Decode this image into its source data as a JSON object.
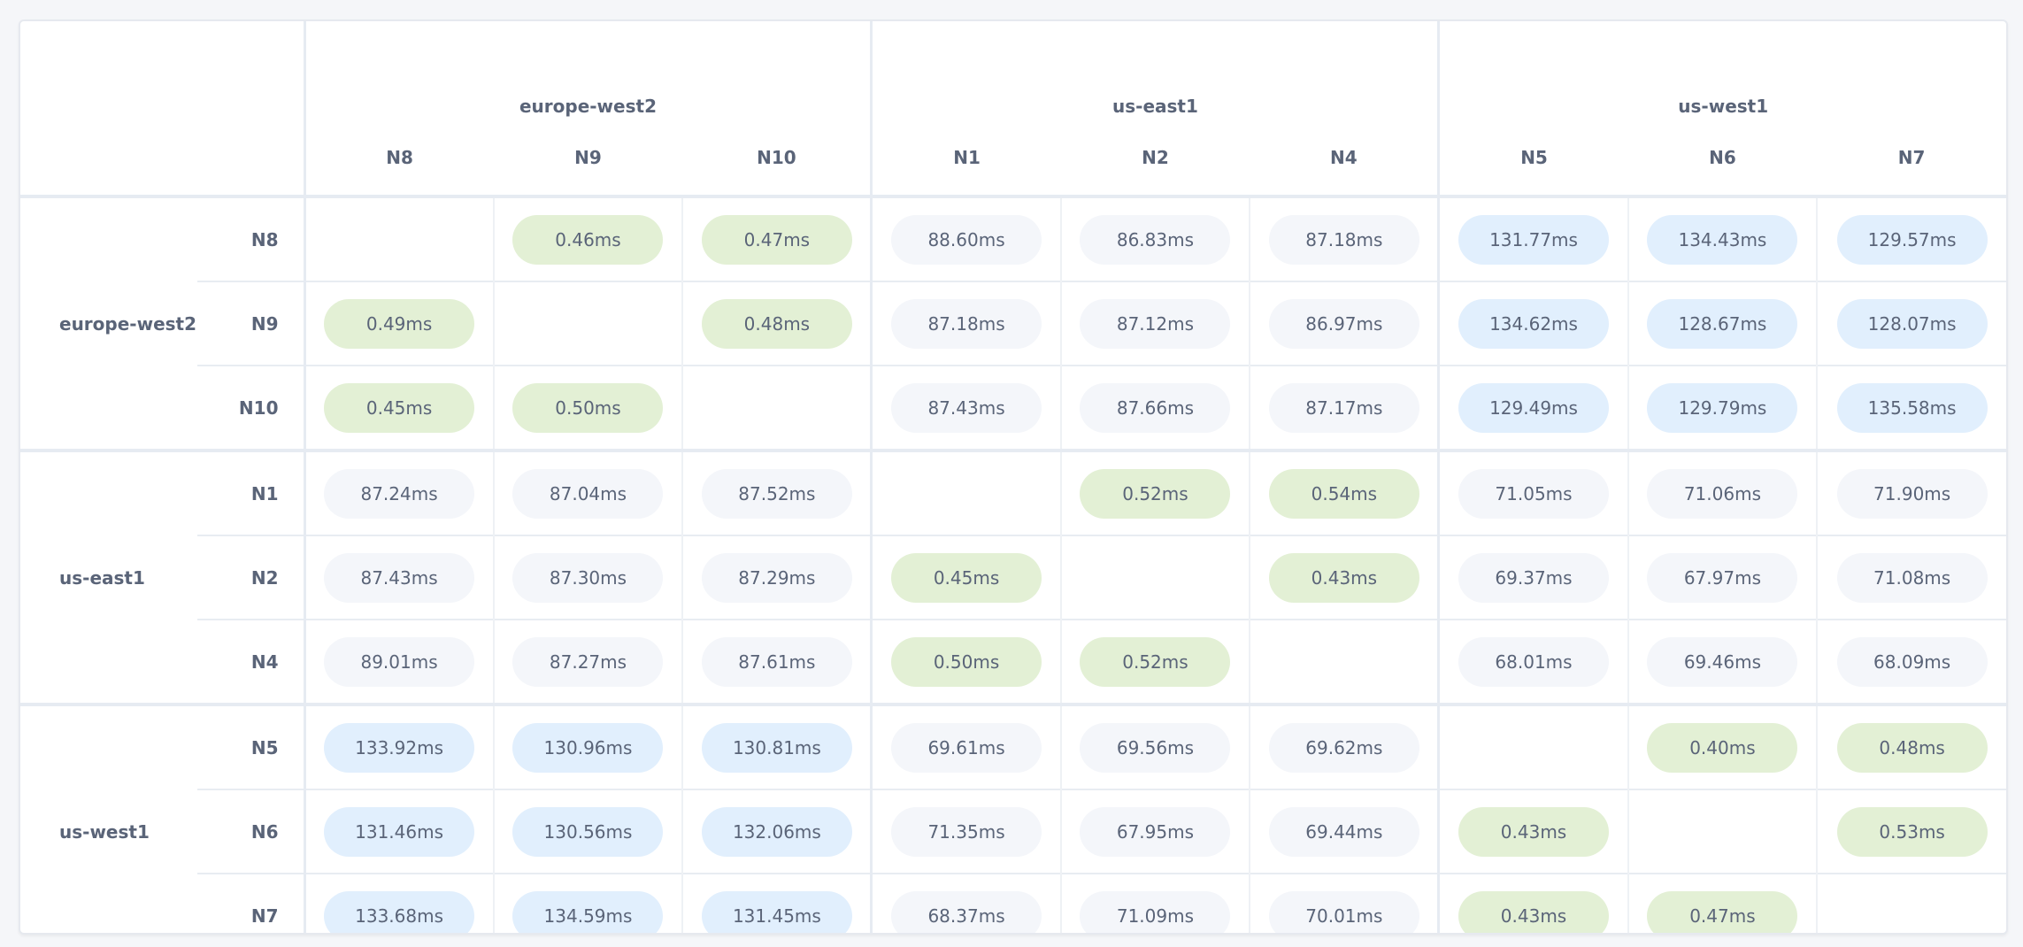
{
  "colors": {
    "same_region": "#e3f0d5",
    "far_region": "#e1effd",
    "near_region": "#f4f6fa",
    "text": "#5a6478"
  },
  "regions": [
    {
      "name": "europe-west2",
      "nodes": [
        "N8",
        "N9",
        "N10"
      ]
    },
    {
      "name": "us-east1",
      "nodes": [
        "N1",
        "N2",
        "N4"
      ]
    },
    {
      "name": "us-west1",
      "nodes": [
        "N5",
        "N6",
        "N7"
      ]
    }
  ],
  "rows": [
    {
      "region": "europe-west2",
      "node": "N8",
      "cells": [
        [
          "",
          ""
        ],
        [
          "0.46ms",
          "green"
        ],
        [
          "0.47ms",
          "green"
        ],
        [
          "88.60ms",
          "gray"
        ],
        [
          "86.83ms",
          "gray"
        ],
        [
          "87.18ms",
          "gray"
        ],
        [
          "131.77ms",
          "blue"
        ],
        [
          "134.43ms",
          "blue"
        ],
        [
          "129.57ms",
          "blue"
        ]
      ]
    },
    {
      "region": "",
      "node": "N9",
      "cells": [
        [
          "0.49ms",
          "green"
        ],
        [
          "",
          ""
        ],
        [
          "0.48ms",
          "green"
        ],
        [
          "87.18ms",
          "gray"
        ],
        [
          "87.12ms",
          "gray"
        ],
        [
          "86.97ms",
          "gray"
        ],
        [
          "134.62ms",
          "blue"
        ],
        [
          "128.67ms",
          "blue"
        ],
        [
          "128.07ms",
          "blue"
        ]
      ]
    },
    {
      "region": "",
      "node": "N10",
      "cells": [
        [
          "0.45ms",
          "green"
        ],
        [
          "0.50ms",
          "green"
        ],
        [
          "",
          ""
        ],
        [
          "87.43ms",
          "gray"
        ],
        [
          "87.66ms",
          "gray"
        ],
        [
          "87.17ms",
          "gray"
        ],
        [
          "129.49ms",
          "blue"
        ],
        [
          "129.79ms",
          "blue"
        ],
        [
          "135.58ms",
          "blue"
        ]
      ]
    },
    {
      "region": "us-east1",
      "node": "N1",
      "cells": [
        [
          "87.24ms",
          "gray"
        ],
        [
          "87.04ms",
          "gray"
        ],
        [
          "87.52ms",
          "gray"
        ],
        [
          "",
          ""
        ],
        [
          "0.52ms",
          "green"
        ],
        [
          "0.54ms",
          "green"
        ],
        [
          "71.05ms",
          "gray"
        ],
        [
          "71.06ms",
          "gray"
        ],
        [
          "71.90ms",
          "gray"
        ]
      ]
    },
    {
      "region": "",
      "node": "N2",
      "cells": [
        [
          "87.43ms",
          "gray"
        ],
        [
          "87.30ms",
          "gray"
        ],
        [
          "87.29ms",
          "gray"
        ],
        [
          "0.45ms",
          "green"
        ],
        [
          "",
          ""
        ],
        [
          "0.43ms",
          "green"
        ],
        [
          "69.37ms",
          "gray"
        ],
        [
          "67.97ms",
          "gray"
        ],
        [
          "71.08ms",
          "gray"
        ]
      ]
    },
    {
      "region": "",
      "node": "N4",
      "cells": [
        [
          "89.01ms",
          "gray"
        ],
        [
          "87.27ms",
          "gray"
        ],
        [
          "87.61ms",
          "gray"
        ],
        [
          "0.50ms",
          "green"
        ],
        [
          "0.52ms",
          "green"
        ],
        [
          "",
          ""
        ],
        [
          "68.01ms",
          "gray"
        ],
        [
          "69.46ms",
          "gray"
        ],
        [
          "68.09ms",
          "gray"
        ]
      ]
    },
    {
      "region": "us-west1",
      "node": "N5",
      "cells": [
        [
          "133.92ms",
          "blue"
        ],
        [
          "130.96ms",
          "blue"
        ],
        [
          "130.81ms",
          "blue"
        ],
        [
          "69.61ms",
          "gray"
        ],
        [
          "69.56ms",
          "gray"
        ],
        [
          "69.62ms",
          "gray"
        ],
        [
          "",
          ""
        ],
        [
          "0.40ms",
          "green"
        ],
        [
          "0.48ms",
          "green"
        ]
      ]
    },
    {
      "region": "",
      "node": "N6",
      "cells": [
        [
          "131.46ms",
          "blue"
        ],
        [
          "130.56ms",
          "blue"
        ],
        [
          "132.06ms",
          "blue"
        ],
        [
          "71.35ms",
          "gray"
        ],
        [
          "67.95ms",
          "gray"
        ],
        [
          "69.44ms",
          "gray"
        ],
        [
          "0.43ms",
          "green"
        ],
        [
          "",
          ""
        ],
        [
          "0.53ms",
          "green"
        ]
      ]
    },
    {
      "region": "",
      "node": "N7",
      "cells": [
        [
          "133.68ms",
          "blue"
        ],
        [
          "134.59ms",
          "blue"
        ],
        [
          "131.45ms",
          "blue"
        ],
        [
          "68.37ms",
          "gray"
        ],
        [
          "71.09ms",
          "gray"
        ],
        [
          "70.01ms",
          "gray"
        ],
        [
          "0.43ms",
          "green"
        ],
        [
          "0.47ms",
          "green"
        ],
        [
          "",
          ""
        ]
      ]
    }
  ]
}
